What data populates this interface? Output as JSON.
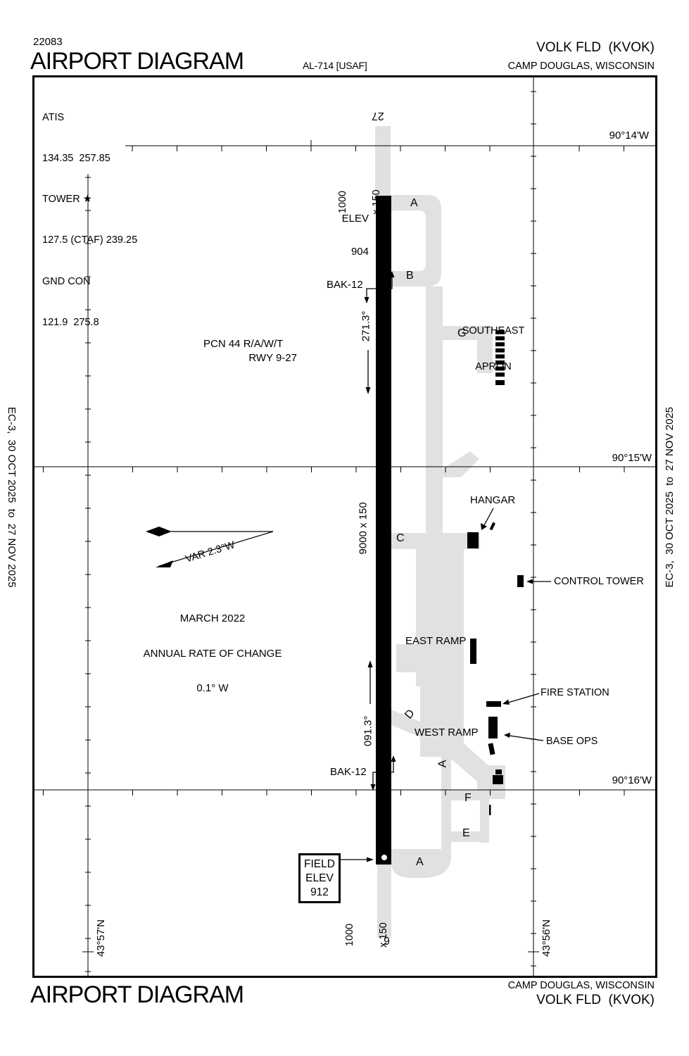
{
  "colors": {
    "ink": "#000000",
    "pavement": "#e1e1e1"
  },
  "header": {
    "doc_number": "22083",
    "title": "AIRPORT DIAGRAM",
    "al_number": "AL-714 [USAF]",
    "airport": "VOLK FLD  (KVOK)",
    "city": "CAMP DOUGLAS, WISCONSIN"
  },
  "comm": {
    "lines": [
      "ATIS",
      "134.35  257.85",
      "TOWER ★",
      "127.5 (CTAF) 239.25",
      "GND CON",
      "121.9  275.8"
    ]
  },
  "grid": {
    "lon_14": "90°14'W",
    "lon_15": "90°15'W",
    "lon_16": "90°16'W",
    "lat_57": "43°57'N",
    "lat_56": "43°56'N"
  },
  "margin": {
    "edition": "EC-3,  30 OCT 2025  to  27 NOV 2025"
  },
  "runway": {
    "end_27": "27",
    "end_9": "9",
    "overrun_len": "1000",
    "overrun_wid": "x 150",
    "elev_label": "ELEV",
    "elev_value": "904",
    "dimensions": "9000 x 150",
    "heading_27": "271.3°",
    "heading_9": "091.3°",
    "arresting_gear": "BAK-12",
    "pcn": "PCN 44 R/A/W/T",
    "pcn_rwy": "RWY 9-27"
  },
  "taxiways": {
    "a": "A",
    "b": "B",
    "c": "C",
    "d": "D",
    "e": "E",
    "f": "F",
    "g": "G"
  },
  "areas": {
    "se_apron_1": "SOUTHEAST",
    "se_apron_2": "APRON",
    "east_ramp": "EAST RAMP",
    "west_ramp": "WEST RAMP"
  },
  "facilities": {
    "hangar": "HANGAR",
    "control_tower": "CONTROL TOWER",
    "fire_station": "FIRE STATION",
    "base_ops": "BASE OPS"
  },
  "field_elev": {
    "l1": "FIELD",
    "l2": "ELEV",
    "value": "912"
  },
  "variation": {
    "label": "VAR 2.3°W",
    "date": "MARCH 2022",
    "rate_1": "ANNUAL RATE OF CHANGE",
    "rate_2": "0.1° W"
  },
  "footer": {
    "title": "AIRPORT DIAGRAM",
    "city": "CAMP DOUGLAS, WISCONSIN",
    "airport": "VOLK FLD  (KVOK)"
  }
}
